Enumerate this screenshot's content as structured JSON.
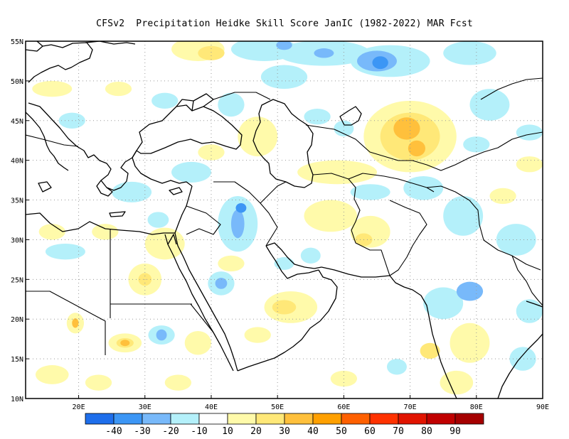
{
  "title": "CFSv2  Precipitation Heidke Skill Score JanIC (1982-2022) MAR Fcst",
  "map": {
    "lon_range": [
      12,
      90
    ],
    "lat_range": [
      10,
      55
    ],
    "x_ticks": [
      {
        "lon": 20,
        "label": "20E"
      },
      {
        "lon": 30,
        "label": "30E"
      },
      {
        "lon": 40,
        "label": "40E"
      },
      {
        "lon": 50,
        "label": "50E"
      },
      {
        "lon": 60,
        "label": "60E"
      },
      {
        "lon": 70,
        "label": "70E"
      },
      {
        "lon": 80,
        "label": "80E"
      },
      {
        "lon": 90,
        "label": "90E"
      }
    ],
    "y_ticks": [
      {
        "lat": 55,
        "label": "55N"
      },
      {
        "lat": 50,
        "label": "50N"
      },
      {
        "lat": 45,
        "label": "45N"
      },
      {
        "lat": 40,
        "label": "40N"
      },
      {
        "lat": 35,
        "label": "35N"
      },
      {
        "lat": 30,
        "label": "30N"
      },
      {
        "lat": 25,
        "label": "25N"
      },
      {
        "lat": 20,
        "label": "20N"
      },
      {
        "lat": 15,
        "label": "15N"
      },
      {
        "lat": 10,
        "label": "10N"
      }
    ],
    "grid": true
  },
  "colorbar": {
    "colors": [
      "#1e6eeb",
      "#3c96f5",
      "#78b9fa",
      "#b4f0fa",
      "#ffffff",
      "#fffaaa",
      "#ffe878",
      "#ffc03c",
      "#ffa000",
      "#ff6000",
      "#ff3200",
      "#e11400",
      "#c00000",
      "#a50000"
    ],
    "labels": [
      "-40",
      "-30",
      "-20",
      "-10",
      "10",
      "20",
      "30",
      "40",
      "50",
      "60",
      "70",
      "80",
      "90"
    ]
  },
  "colors": {
    "blue1": "#b4f0fa",
    "blue2": "#78b9fa",
    "blue3": "#3c96f5",
    "yellow1": "#fffaaa",
    "yellow2": "#ffe878",
    "orange1": "#ffc03c",
    "orange2": "#ffa000"
  },
  "skill_patches": [
    {
      "lon": 48,
      "lat": 54,
      "rx": 5,
      "ry": 1.5,
      "level": "blue1"
    },
    {
      "lon": 57,
      "lat": 53.5,
      "rx": 7,
      "ry": 1.6,
      "level": "blue1"
    },
    {
      "lon": 67,
      "lat": 52.5,
      "rx": 6,
      "ry": 2,
      "level": "blue1"
    },
    {
      "lon": 65,
      "lat": 52.5,
      "rx": 3,
      "ry": 1.3,
      "level": "blue2"
    },
    {
      "lon": 65.5,
      "lat": 52.3,
      "rx": 1.2,
      "ry": 0.8,
      "level": "blue3"
    },
    {
      "lon": 51,
      "lat": 54.5,
      "rx": 1.2,
      "ry": 0.6,
      "level": "blue2"
    },
    {
      "lon": 57,
      "lat": 53.5,
      "rx": 1.5,
      "ry": 0.6,
      "level": "blue2"
    },
    {
      "lon": 79,
      "lat": 53.5,
      "rx": 4,
      "ry": 1.5,
      "level": "blue1"
    },
    {
      "lon": 82,
      "lat": 47,
      "rx": 3,
      "ry": 2,
      "level": "blue1"
    },
    {
      "lon": 88,
      "lat": 43.5,
      "rx": 2,
      "ry": 1,
      "level": "blue1"
    },
    {
      "lon": 43,
      "lat": 47,
      "rx": 2,
      "ry": 1.5,
      "level": "blue1"
    },
    {
      "lon": 51,
      "lat": 50.5,
      "rx": 3.5,
      "ry": 1.5,
      "level": "blue1"
    },
    {
      "lon": 38,
      "lat": 54,
      "rx": 4,
      "ry": 1.5,
      "level": "yellow1"
    },
    {
      "lon": 40,
      "lat": 53.5,
      "rx": 2,
      "ry": 0.9,
      "level": "yellow2"
    },
    {
      "lon": 70,
      "lat": 43,
      "rx": 7,
      "ry": 4.5,
      "level": "yellow1"
    },
    {
      "lon": 70,
      "lat": 43,
      "rx": 4.5,
      "ry": 3,
      "level": "yellow2"
    },
    {
      "lon": 69.5,
      "lat": 44,
      "rx": 2,
      "ry": 1.4,
      "level": "orange1"
    },
    {
      "lon": 71,
      "lat": 41.5,
      "rx": 1.3,
      "ry": 1,
      "level": "orange1"
    },
    {
      "lon": 59,
      "lat": 38.5,
      "rx": 6,
      "ry": 1.5,
      "level": "yellow1"
    },
    {
      "lon": 47,
      "lat": 43,
      "rx": 3,
      "ry": 2.5,
      "level": "yellow1"
    },
    {
      "lon": 88,
      "lat": 39.5,
      "rx": 2,
      "ry": 1,
      "level": "yellow1"
    },
    {
      "lon": 40,
      "lat": 41,
      "rx": 2,
      "ry": 1,
      "level": "yellow1"
    },
    {
      "lon": 16,
      "lat": 49,
      "rx": 3,
      "ry": 1,
      "level": "yellow1"
    },
    {
      "lon": 26,
      "lat": 49,
      "rx": 2,
      "ry": 0.9,
      "level": "yellow1"
    },
    {
      "lon": 33,
      "lat": 47.5,
      "rx": 2,
      "ry": 1,
      "level": "blue1"
    },
    {
      "lon": 19,
      "lat": 45,
      "rx": 2,
      "ry": 1,
      "level": "blue1"
    },
    {
      "lon": 28,
      "lat": 36,
      "rx": 3,
      "ry": 1.3,
      "level": "blue1"
    },
    {
      "lon": 37,
      "lat": 38.5,
      "rx": 3,
      "ry": 1.3,
      "level": "blue1"
    },
    {
      "lon": 44,
      "lat": 32,
      "rx": 3,
      "ry": 3.5,
      "level": "blue1"
    },
    {
      "lon": 44,
      "lat": 32,
      "rx": 1,
      "ry": 1.8,
      "level": "blue2"
    },
    {
      "lon": 44.5,
      "lat": 34,
      "rx": 0.8,
      "ry": 0.6,
      "level": "blue3"
    },
    {
      "lon": 41.5,
      "lat": 24.5,
      "rx": 2,
      "ry": 1.5,
      "level": "blue1"
    },
    {
      "lon": 41.5,
      "lat": 24.5,
      "rx": 0.9,
      "ry": 0.7,
      "level": "blue2"
    },
    {
      "lon": 32.5,
      "lat": 18,
      "rx": 2,
      "ry": 1.2,
      "level": "blue1"
    },
    {
      "lon": 32.5,
      "lat": 18,
      "rx": 0.8,
      "ry": 0.7,
      "level": "blue2"
    },
    {
      "lon": 18,
      "lat": 28.5,
      "rx": 3,
      "ry": 1,
      "level": "blue1"
    },
    {
      "lon": 32,
      "lat": 32.5,
      "rx": 1.6,
      "ry": 1,
      "level": "blue1"
    },
    {
      "lon": 33,
      "lat": 29.5,
      "rx": 3,
      "ry": 2,
      "level": "yellow1"
    },
    {
      "lon": 30,
      "lat": 25,
      "rx": 2.5,
      "ry": 2,
      "level": "yellow1"
    },
    {
      "lon": 30,
      "lat": 25,
      "rx": 1,
      "ry": 0.8,
      "level": "yellow2"
    },
    {
      "lon": 27,
      "lat": 17,
      "rx": 2.5,
      "ry": 1.2,
      "level": "yellow1"
    },
    {
      "lon": 27,
      "lat": 17,
      "rx": 1.3,
      "ry": 0.6,
      "level": "yellow2"
    },
    {
      "lon": 27,
      "lat": 17,
      "rx": 0.7,
      "ry": 0.4,
      "level": "orange1"
    },
    {
      "lon": 19.5,
      "lat": 19.5,
      "rx": 1.3,
      "ry": 1.3,
      "level": "yellow1"
    },
    {
      "lon": 19.5,
      "lat": 19.5,
      "rx": 0.5,
      "ry": 0.6,
      "level": "orange1"
    },
    {
      "lon": 52,
      "lat": 21.5,
      "rx": 4,
      "ry": 2,
      "level": "yellow1"
    },
    {
      "lon": 51,
      "lat": 21.5,
      "rx": 1.8,
      "ry": 0.9,
      "level": "yellow2"
    },
    {
      "lon": 47,
      "lat": 18,
      "rx": 2,
      "ry": 1,
      "level": "yellow1"
    },
    {
      "lon": 43,
      "lat": 27,
      "rx": 2,
      "ry": 1,
      "level": "yellow1"
    },
    {
      "lon": 58,
      "lat": 33,
      "rx": 4,
      "ry": 2,
      "level": "yellow1"
    },
    {
      "lon": 64,
      "lat": 31,
      "rx": 3,
      "ry": 2,
      "level": "yellow1"
    },
    {
      "lon": 63,
      "lat": 30,
      "rx": 1.3,
      "ry": 0.8,
      "level": "yellow2"
    },
    {
      "lon": 72,
      "lat": 36.5,
      "rx": 3,
      "ry": 1.5,
      "level": "blue1"
    },
    {
      "lon": 64,
      "lat": 36,
      "rx": 3,
      "ry": 1,
      "level": "blue1"
    },
    {
      "lon": 78,
      "lat": 33,
      "rx": 3,
      "ry": 2.5,
      "level": "blue1"
    },
    {
      "lon": 86,
      "lat": 30,
      "rx": 3,
      "ry": 2,
      "level": "blue1"
    },
    {
      "lon": 75,
      "lat": 22,
      "rx": 3,
      "ry": 2,
      "level": "blue1"
    },
    {
      "lon": 79,
      "lat": 23.5,
      "rx": 2,
      "ry": 1.2,
      "level": "blue2"
    },
    {
      "lon": 88,
      "lat": 21,
      "rx": 2,
      "ry": 1.5,
      "level": "blue1"
    },
    {
      "lon": 79,
      "lat": 17,
      "rx": 3,
      "ry": 2.5,
      "level": "yellow1"
    },
    {
      "lon": 77,
      "lat": 12,
      "rx": 2.5,
      "ry": 1.5,
      "level": "yellow1"
    },
    {
      "lon": 73,
      "lat": 16,
      "rx": 1.5,
      "ry": 1,
      "level": "yellow2"
    },
    {
      "lon": 87,
      "lat": 15,
      "rx": 2,
      "ry": 1.5,
      "level": "blue1"
    },
    {
      "lon": 55,
      "lat": 28,
      "rx": 1.5,
      "ry": 1,
      "level": "blue1"
    },
    {
      "lon": 51,
      "lat": 27,
      "rx": 1.5,
      "ry": 0.8,
      "level": "blue1"
    },
    {
      "lon": 38,
      "lat": 17,
      "rx": 2,
      "ry": 1.5,
      "level": "yellow1"
    },
    {
      "lon": 16,
      "lat": 13,
      "rx": 2.5,
      "ry": 1.2,
      "level": "yellow1"
    },
    {
      "lon": 23,
      "lat": 12,
      "rx": 2,
      "ry": 1,
      "level": "yellow1"
    },
    {
      "lon": 35,
      "lat": 12,
      "rx": 2,
      "ry": 1,
      "level": "yellow1"
    },
    {
      "lon": 60,
      "lat": 12.5,
      "rx": 2,
      "ry": 1,
      "level": "yellow1"
    },
    {
      "lon": 68,
      "lat": 14,
      "rx": 1.5,
      "ry": 1,
      "level": "blue1"
    },
    {
      "lon": 56,
      "lat": 45.5,
      "rx": 2,
      "ry": 1,
      "level": "blue1"
    },
    {
      "lon": 60,
      "lat": 44,
      "rx": 1.5,
      "ry": 1,
      "level": "blue1"
    },
    {
      "lon": 80,
      "lat": 42,
      "rx": 2,
      "ry": 1,
      "level": "blue1"
    },
    {
      "lon": 84,
      "lat": 35.5,
      "rx": 2,
      "ry": 1,
      "level": "yellow1"
    },
    {
      "lon": 24,
      "lat": 31,
      "rx": 2,
      "ry": 1,
      "level": "yellow1"
    },
    {
      "lon": 16,
      "lat": 31,
      "rx": 2,
      "ry": 1,
      "level": "yellow1"
    }
  ]
}
